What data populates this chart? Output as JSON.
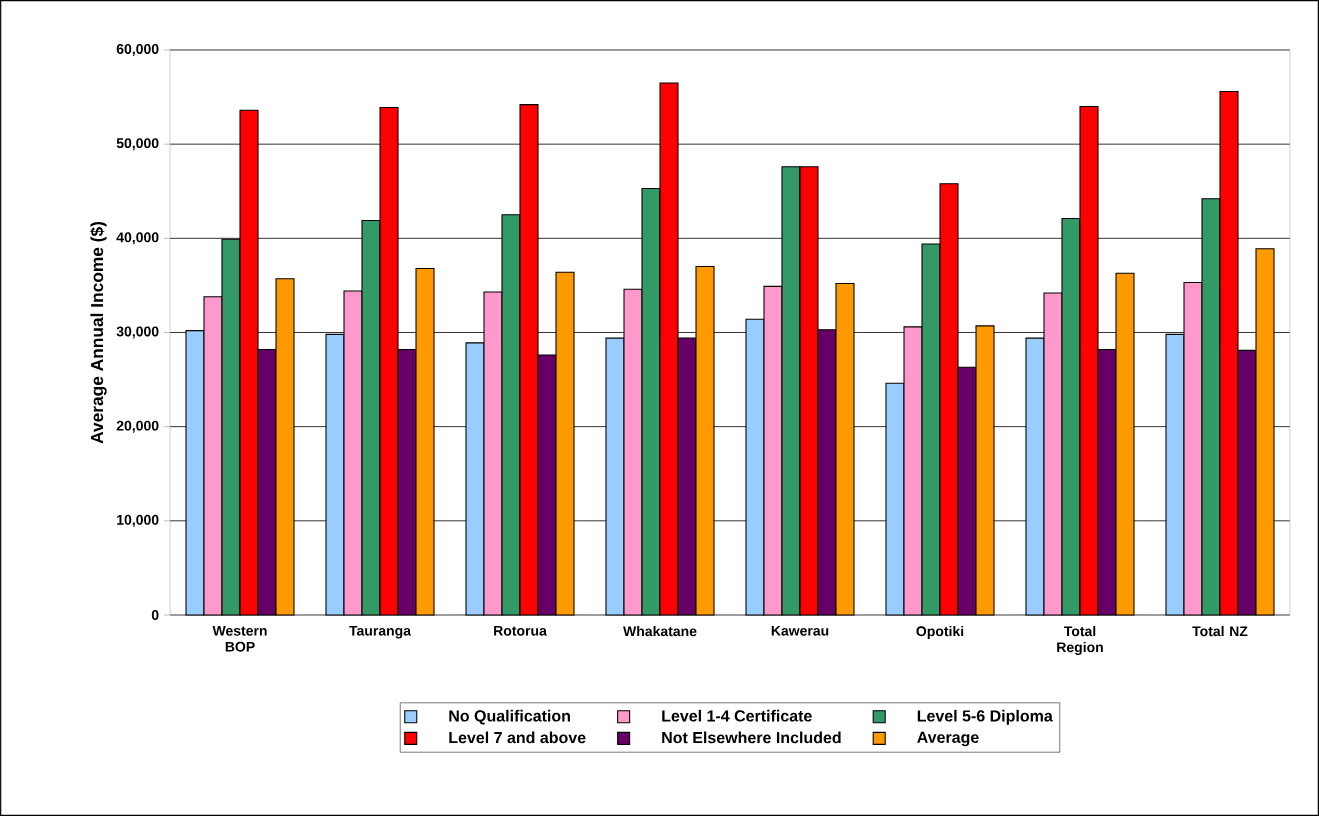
{
  "chart_data": {
    "type": "bar",
    "ylabel": "Average Annual Income ($)",
    "categories": [
      "Western BOP",
      "Tauranga",
      "Rotorua",
      "Whakatane",
      "Kawerau",
      "Opotiki",
      "Total Region",
      "Total NZ"
    ],
    "series": [
      {
        "name": "No Qualification",
        "color": "#99ccff",
        "values": [
          30200,
          29800,
          28900,
          29400,
          31400,
          24600,
          29400,
          29800
        ]
      },
      {
        "name": "Level 1-4 Certificate",
        "color": "#ff99cc",
        "values": [
          33800,
          34400,
          34300,
          34600,
          34900,
          30600,
          34200,
          35300
        ]
      },
      {
        "name": "Level 5-6 Diploma",
        "color": "#339966",
        "values": [
          39900,
          41900,
          42500,
          45300,
          47600,
          39400,
          42100,
          44200
        ]
      },
      {
        "name": "Level 7 and above",
        "color": "#ff0000",
        "values": [
          53600,
          53900,
          54200,
          56500,
          47600,
          45800,
          54000,
          55600
        ]
      },
      {
        "name": "Not Elsewhere Included",
        "color": "#660066",
        "values": [
          28200,
          28200,
          27600,
          29400,
          30300,
          26300,
          28200,
          28100
        ]
      },
      {
        "name": "Average",
        "color": "#ff9900",
        "values": [
          35700,
          36800,
          36400,
          37000,
          35200,
          30700,
          36300,
          38900
        ]
      }
    ],
    "ylim": [
      0,
      60000
    ],
    "yticks": [
      {
        "value": 0,
        "label": "0"
      },
      {
        "value": 10000,
        "label": "10,000"
      },
      {
        "value": 20000,
        "label": "20,000"
      },
      {
        "value": 30000,
        "label": "30,000"
      },
      {
        "value": 40000,
        "label": "40,000"
      },
      {
        "value": 50000,
        "label": "50,000"
      },
      {
        "value": 60000,
        "label": "60,000"
      }
    ],
    "grid": "y",
    "legend": "bottom"
  }
}
